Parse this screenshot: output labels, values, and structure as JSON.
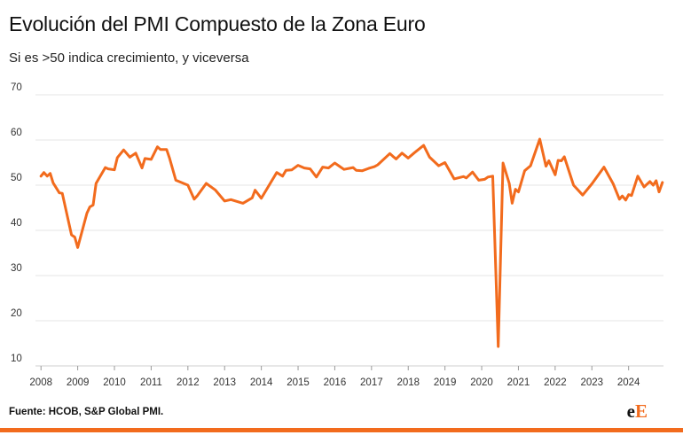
{
  "title": "Evolución del PMI Compuesto de la Zona Euro",
  "subtitle": "Si es >50 indica crecimiento, y viceversa",
  "source": "Fuente: HCOB, S&P Global PMI.",
  "logo": {
    "e": "e",
    "E": "E"
  },
  "colors": {
    "line": "#f26b1d",
    "accent": "#f26b1d",
    "grid": "#e6e6e6",
    "axis": "#cfcfcf"
  },
  "chart_data": {
    "type": "line",
    "title": "Evolución del PMI Compuesto de la Zona Euro",
    "subtitle": "Si es >50 indica crecimiento, y viceversa",
    "xlabel": "",
    "ylabel": "",
    "ylim": [
      10,
      70
    ],
    "yticks": [
      10,
      20,
      30,
      40,
      50,
      60,
      70
    ],
    "xlim": [
      2007.85,
      2024.95
    ],
    "xticks": [
      "2008",
      "2009",
      "2010",
      "2011",
      "2012",
      "2013",
      "2014",
      "2015",
      "2016",
      "2017",
      "2018",
      "2019",
      "2020",
      "2021",
      "2022",
      "2023",
      "2024"
    ],
    "grid": true,
    "series": [
      {
        "color": "#f26b1d",
        "x": [
          2008.0,
          2008.08,
          2008.17,
          2008.25,
          2008.33,
          2008.5,
          2008.58,
          2008.83,
          2008.92,
          2009.0,
          2009.25,
          2009.33,
          2009.42,
          2009.5,
          2009.75,
          2009.83,
          2010.0,
          2010.08,
          2010.25,
          2010.42,
          2010.58,
          2010.75,
          2010.83,
          2011.0,
          2011.08,
          2011.17,
          2011.25,
          2011.42,
          2011.5,
          2011.67,
          2012.0,
          2012.17,
          2012.25,
          2012.5,
          2012.75,
          2013.0,
          2013.17,
          2013.5,
          2013.75,
          2013.83,
          2014.0,
          2014.08,
          2014.25,
          2014.42,
          2014.58,
          2014.67,
          2014.83,
          2015.0,
          2015.17,
          2015.33,
          2015.5,
          2015.67,
          2015.83,
          2016.0,
          2016.25,
          2016.5,
          2016.58,
          2016.75,
          2016.92,
          2017.08,
          2017.17,
          2017.5,
          2017.58,
          2017.67,
          2017.83,
          2018.0,
          2018.17,
          2018.42,
          2018.58,
          2018.83,
          2019.0,
          2019.25,
          2019.5,
          2019.58,
          2019.75,
          2019.92,
          2020.08,
          2020.17,
          2020.3,
          2020.45,
          2020.58,
          2020.75,
          2020.83,
          2020.92,
          2021.0,
          2021.17,
          2021.33,
          2021.58,
          2021.75,
          2021.83,
          2022.0,
          2022.08,
          2022.17,
          2022.25,
          2022.5,
          2022.75,
          2023.0,
          2023.33,
          2023.58,
          2023.75,
          2023.83,
          2023.92,
          2024.0,
          2024.08,
          2024.25,
          2024.42,
          2024.58,
          2024.67,
          2024.75,
          2024.83,
          2024.92
        ],
        "values": [
          52.0,
          52.8,
          52.0,
          52.6,
          50.5,
          48.3,
          48.2,
          39.0,
          38.5,
          36.2,
          43.8,
          45.2,
          45.6,
          50.4,
          53.9,
          53.6,
          53.4,
          56.1,
          57.8,
          56.2,
          57.1,
          53.8,
          55.9,
          55.7,
          57.0,
          58.5,
          57.9,
          57.9,
          56.0,
          51.1,
          50.0,
          46.9,
          47.6,
          50.4,
          48.9,
          46.5,
          46.8,
          46.0,
          47.2,
          48.9,
          47.1,
          48.2,
          50.5,
          52.8,
          52.0,
          53.3,
          53.4,
          54.4,
          53.8,
          53.6,
          51.8,
          54.0,
          53.8,
          54.9,
          53.5,
          53.9,
          53.3,
          53.2,
          53.7,
          54.1,
          54.5,
          57.0,
          56.4,
          55.8,
          57.1,
          56.0,
          57.2,
          58.8,
          56.2,
          54.3,
          55.0,
          51.4,
          51.9,
          51.6,
          52.9,
          51.1,
          51.3,
          51.8,
          52.0,
          14.3,
          54.9,
          50.4,
          46.0,
          49.1,
          48.5,
          53.2,
          54.3,
          60.2,
          54.2,
          55.4,
          52.3,
          55.5,
          55.4,
          56.3,
          50.0,
          47.8,
          50.3,
          54.0,
          50.3,
          46.9,
          47.6,
          46.7,
          47.9,
          47.7,
          52.0,
          49.6,
          50.8,
          50.0,
          51.0,
          48.5,
          50.6
        ]
      }
    ]
  }
}
